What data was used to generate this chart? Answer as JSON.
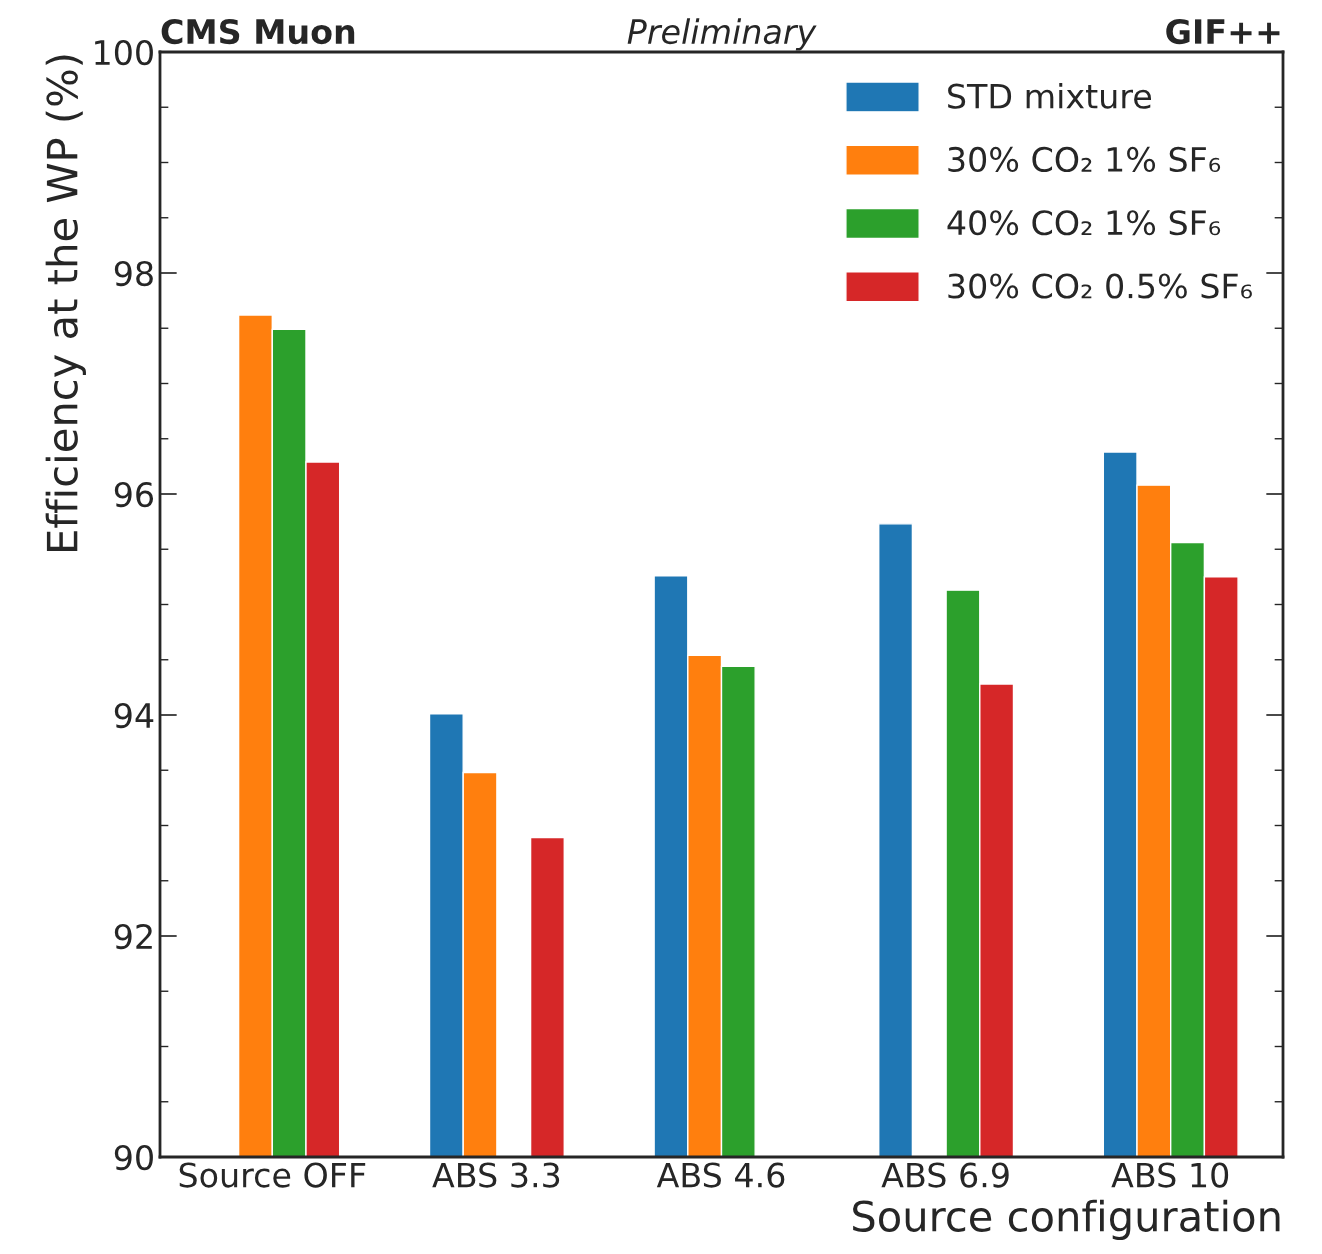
{
  "chart_data": {
    "type": "bar",
    "title": "CMS Muon",
    "subtitle": "Preliminary",
    "annotations": [
      "GIF++"
    ],
    "xlabel": "Source configuration",
    "ylabel": "Efficiency at the WP (%)",
    "categories": [
      "Source OFF",
      "ABS 3.3",
      "ABS 4.6",
      "ABS 6.9",
      "ABS 10"
    ],
    "series": [
      {
        "name": "STD mixture",
        "color": "#1f77b4",
        "values": [
          null,
          94.01,
          95.26,
          95.73,
          96.38
        ]
      },
      {
        "name": "30% CO₂ 1% SF₆",
        "color": "#ff7f0e",
        "values": [
          97.62,
          93.48,
          94.54,
          null,
          96.08
        ]
      },
      {
        "name": "40% CO₂ 1% SF₆",
        "color": "#2ca02c",
        "values": [
          97.49,
          null,
          94.44,
          95.13,
          95.56
        ]
      },
      {
        "name": "30% CO₂ 0.5% SF₆",
        "color": "#d62728",
        "values": [
          96.29,
          92.89,
          null,
          94.28,
          95.25
        ]
      }
    ],
    "ylim": [
      90,
      100
    ],
    "yticks": [
      90,
      {
        "value": 90.5,
        "label": null
      },
      {
        "value": 91,
        "label": null
      },
      {
        "value": 91.5,
        "label": null
      },
      92,
      {
        "value": 92.5,
        "label": null
      },
      {
        "value": 93,
        "label": null
      },
      {
        "value": 93.5,
        "label": null
      },
      94,
      {
        "value": 94.5,
        "label": null
      },
      {
        "value": 95,
        "label": null
      },
      {
        "value": 95.5,
        "label": null
      },
      96,
      {
        "value": 96.5,
        "label": null
      },
      {
        "value": 97,
        "label": null
      },
      {
        "value": 97.5,
        "label": null
      },
      98,
      {
        "value": 98.5,
        "label": null
      },
      {
        "value": 99,
        "label": null
      },
      {
        "value": 99.5,
        "label": null
      },
      100
    ],
    "legend": "top right",
    "grid": false
  }
}
